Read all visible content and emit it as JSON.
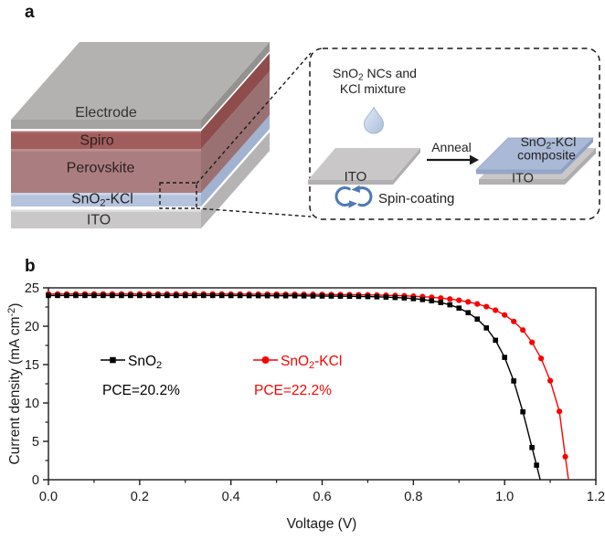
{
  "panel_a": {
    "label": "a",
    "stack": {
      "layers": [
        {
          "label": "Electrode",
          "top_color": "#b4b1b1",
          "front_color": "#a5a2a2",
          "side_color": "#949191"
        },
        {
          "label": "Spiro",
          "front_color": "#a15d5c",
          "side_color": "#8e4d4c",
          "edge_color": "#b47170"
        },
        {
          "label": "Perovskite",
          "front_color": "#aa7e80",
          "side_color": "#9a7173",
          "edge_color": "#bb9093"
        },
        {
          "label_parts": {
            "main": "SnO",
            "sub": "2",
            "rest": "-KCl"
          },
          "front_color": "#b6c3dc",
          "side_color": "#a2b2d1",
          "edge_color": "#cdd7e8"
        },
        {
          "label": "ITO",
          "front_color": "#c9c7c7",
          "side_color": "#b5b3b3",
          "edge_color": "#dddcdc"
        }
      ]
    },
    "inset": {
      "mixture_label_line1_parts": {
        "main": "SnO",
        "sub": "2",
        "rest": " NCs and"
      },
      "mixture_label_line2": "KCl mixture",
      "left_plate_label": "ITO",
      "anneal_label": "Anneal",
      "result_plate_label_parts": {
        "main": "SnO",
        "sub": "2",
        "rest": "-KCl"
      },
      "result_plate_label_line2": "composite",
      "result_base_label": "ITO",
      "spin_label": "Spin-coating",
      "icons": {
        "droplet": "water-droplet-icon",
        "spin": "rotation-arrows-icon",
        "anneal": "right-arrow-icon"
      },
      "colors": {
        "plate_top": "#c9c7c7",
        "plate_front": "#b2b0b0",
        "plate_side": "#aeacac",
        "blue_top": "#aab9d6",
        "blue_front": "#96a7c8",
        "blue_side": "#8da0c5",
        "droplet_light": "#dce5f2",
        "droplet_dark": "#aabddc",
        "droplet_edge": "#9db1d3",
        "spin_arrow": "#4f7ab8",
        "line_black": "#1a1a1a"
      }
    }
  },
  "panel_b": {
    "label": "b"
  },
  "chart_data": {
    "type": "line",
    "title": "",
    "xlabel": "Voltage (V)",
    "ylabel": "Current density (mA cm-2)",
    "ylabel_parts": {
      "pre": "Current density (mA cm",
      "sup": "-2",
      "post": ")"
    },
    "xlim": [
      0,
      1.2
    ],
    "ylim": [
      0,
      25
    ],
    "grid": false,
    "legend_position": "inside upper-left",
    "xticks": [
      {
        "v": 0,
        "label": "0.0"
      },
      {
        "v": 0.2,
        "label": "0.2"
      },
      {
        "v": 0.4,
        "label": "0.4"
      },
      {
        "v": 0.6,
        "label": "0.6"
      },
      {
        "v": 0.8,
        "label": "0.8"
      },
      {
        "v": 1.0,
        "label": "1.0"
      },
      {
        "v": 1.2,
        "label": "1.2"
      }
    ],
    "xminor": [
      0.1,
      0.3,
      0.5,
      0.7,
      0.9,
      1.1
    ],
    "yticks": [
      {
        "v": 0,
        "label": "0"
      },
      {
        "v": 5,
        "label": "5"
      },
      {
        "v": 10,
        "label": "10"
      },
      {
        "v": 15,
        "label": "15"
      },
      {
        "v": 20,
        "label": "20"
      },
      {
        "v": 25,
        "label": "25"
      }
    ],
    "yminor": [
      2.5,
      7.5,
      12.5,
      17.5,
      22.5
    ],
    "series": [
      {
        "name": "SnO2",
        "label_parts": {
          "main": "SnO",
          "sub": "2",
          "rest": ""
        },
        "pce_label": "PCE=20.2%",
        "color": "#000000",
        "marker": "square",
        "jsc": 24.0,
        "voc": 1.078,
        "points": [
          [
            0.0,
            24.0
          ],
          [
            0.02,
            24.0
          ],
          [
            0.04,
            24.0
          ],
          [
            0.06,
            24.0
          ],
          [
            0.08,
            24.0
          ],
          [
            0.1,
            24.0
          ],
          [
            0.12,
            24.0
          ],
          [
            0.14,
            24.0
          ],
          [
            0.16,
            24.0
          ],
          [
            0.18,
            24.0
          ],
          [
            0.2,
            24.0
          ],
          [
            0.22,
            24.0
          ],
          [
            0.24,
            24.0
          ],
          [
            0.26,
            24.0
          ],
          [
            0.28,
            24.0
          ],
          [
            0.3,
            24.0
          ],
          [
            0.32,
            24.0
          ],
          [
            0.34,
            24.0
          ],
          [
            0.36,
            24.0
          ],
          [
            0.38,
            24.0
          ],
          [
            0.4,
            23.99
          ],
          [
            0.42,
            23.99
          ],
          [
            0.44,
            23.98
          ],
          [
            0.46,
            23.98
          ],
          [
            0.48,
            23.97
          ],
          [
            0.5,
            23.97
          ],
          [
            0.52,
            23.96
          ],
          [
            0.54,
            23.96
          ],
          [
            0.56,
            23.95
          ],
          [
            0.58,
            23.94
          ],
          [
            0.6,
            23.93
          ],
          [
            0.62,
            23.92
          ],
          [
            0.64,
            23.91
          ],
          [
            0.66,
            23.9
          ],
          [
            0.68,
            23.88
          ],
          [
            0.7,
            23.86
          ],
          [
            0.72,
            23.83
          ],
          [
            0.74,
            23.79
          ],
          [
            0.76,
            23.74
          ],
          [
            0.78,
            23.68
          ],
          [
            0.8,
            23.59
          ],
          [
            0.82,
            23.47
          ],
          [
            0.84,
            23.31
          ],
          [
            0.86,
            23.09
          ],
          [
            0.88,
            22.79
          ],
          [
            0.9,
            22.36
          ],
          [
            0.92,
            21.76
          ],
          [
            0.94,
            20.93
          ],
          [
            0.96,
            19.78
          ],
          [
            0.98,
            18.17
          ],
          [
            1.0,
            15.94
          ],
          [
            1.02,
            12.87
          ],
          [
            1.04,
            8.85
          ],
          [
            1.06,
            4.2
          ],
          [
            1.07,
            1.9
          ],
          [
            1.078,
            0.0
          ]
        ]
      },
      {
        "name": "SnO2-KCl",
        "label_parts": {
          "main": "SnO",
          "sub": "2",
          "rest": "-KCl"
        },
        "pce_label": "PCE=22.2%",
        "color": "#f80400",
        "marker": "circle",
        "jsc": 24.2,
        "voc": 1.14,
        "points": [
          [
            0.0,
            24.2
          ],
          [
            0.02,
            24.2
          ],
          [
            0.04,
            24.2
          ],
          [
            0.06,
            24.2
          ],
          [
            0.08,
            24.2
          ],
          [
            0.1,
            24.2
          ],
          [
            0.12,
            24.2
          ],
          [
            0.14,
            24.2
          ],
          [
            0.16,
            24.2
          ],
          [
            0.18,
            24.2
          ],
          [
            0.2,
            24.2
          ],
          [
            0.22,
            24.2
          ],
          [
            0.24,
            24.2
          ],
          [
            0.26,
            24.2
          ],
          [
            0.28,
            24.2
          ],
          [
            0.3,
            24.2
          ],
          [
            0.32,
            24.2
          ],
          [
            0.34,
            24.2
          ],
          [
            0.36,
            24.2
          ],
          [
            0.38,
            24.2
          ],
          [
            0.4,
            24.19
          ],
          [
            0.42,
            24.19
          ],
          [
            0.44,
            24.18
          ],
          [
            0.46,
            24.18
          ],
          [
            0.48,
            24.17
          ],
          [
            0.5,
            24.17
          ],
          [
            0.52,
            24.16
          ],
          [
            0.54,
            24.16
          ],
          [
            0.56,
            24.15
          ],
          [
            0.58,
            24.15
          ],
          [
            0.6,
            24.14
          ],
          [
            0.62,
            24.13
          ],
          [
            0.64,
            24.12
          ],
          [
            0.66,
            24.11
          ],
          [
            0.68,
            24.1
          ],
          [
            0.7,
            24.08
          ],
          [
            0.72,
            24.06
          ],
          [
            0.74,
            24.03
          ],
          [
            0.76,
            24.0
          ],
          [
            0.78,
            23.96
          ],
          [
            0.8,
            23.91
          ],
          [
            0.82,
            23.85
          ],
          [
            0.84,
            23.77
          ],
          [
            0.86,
            23.67
          ],
          [
            0.88,
            23.54
          ],
          [
            0.9,
            23.38
          ],
          [
            0.92,
            23.17
          ],
          [
            0.94,
            22.9
          ],
          [
            0.96,
            22.55
          ],
          [
            0.98,
            22.08
          ],
          [
            1.0,
            21.46
          ],
          [
            1.02,
            20.62
          ],
          [
            1.04,
            19.5
          ],
          [
            1.06,
            17.9
          ],
          [
            1.08,
            15.8
          ],
          [
            1.1,
            12.9
          ],
          [
            1.12,
            8.9
          ],
          [
            1.133,
            3.0
          ],
          [
            1.14,
            0.0
          ]
        ]
      }
    ]
  }
}
